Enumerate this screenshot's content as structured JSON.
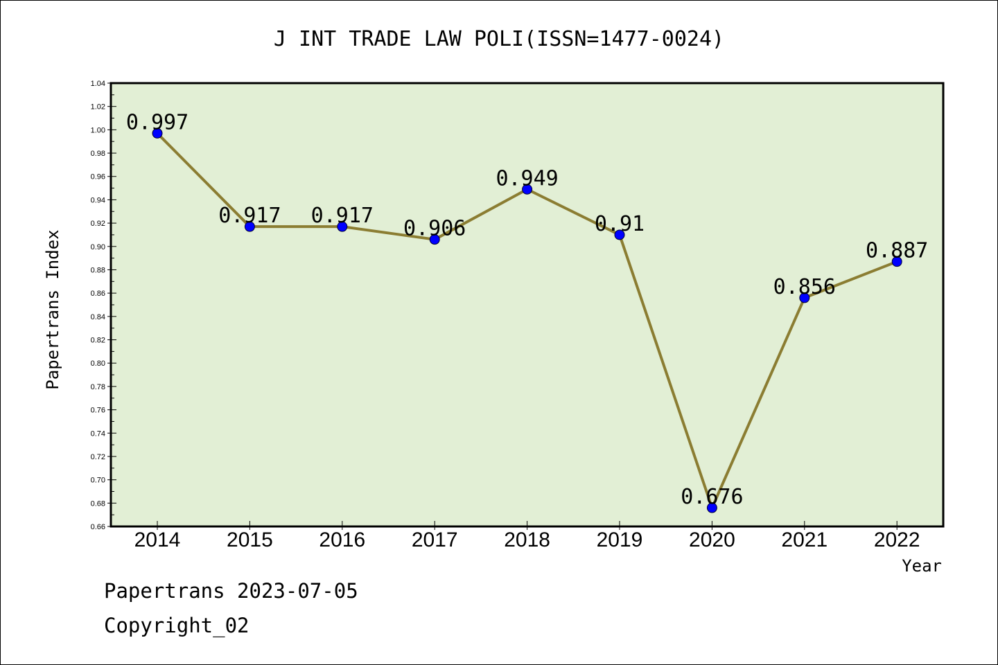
{
  "footer": {
    "line1": "Papertrans 2023-07-05",
    "line2": "Copyright_02"
  },
  "chart_data": {
    "type": "line",
    "title": "J INT TRADE LAW POLI(ISSN=1477-0024)",
    "xlabel": "Year",
    "ylabel": "Papertrans Index",
    "categories": [
      "2014",
      "2015",
      "2016",
      "2017",
      "2018",
      "2019",
      "2020",
      "2021",
      "2022"
    ],
    "series": [
      {
        "values": [
          0.997,
          0.917,
          0.917,
          0.906,
          0.949,
          0.91,
          0.676,
          0.856,
          0.887
        ],
        "data_labels": [
          "0.997",
          "0.917",
          "0.917",
          "0.906",
          "0.949",
          "0.91",
          "0.676",
          "0.856",
          "0.887"
        ],
        "line_color": "#8b7d32",
        "marker_color": "#0000ff"
      }
    ],
    "ylim": [
      0.66,
      1.04
    ],
    "yticks": [
      "0.66",
      "0.68",
      "0.70",
      "0.72",
      "0.74",
      "0.76",
      "0.78",
      "0.80",
      "0.82",
      "0.84",
      "0.86",
      "0.88",
      "0.90",
      "0.92",
      "0.94",
      "0.96",
      "0.98",
      "1.00",
      "1.02",
      "1.04"
    ],
    "plot_background": "#e2efd5",
    "grid": false,
    "legend": "none"
  }
}
